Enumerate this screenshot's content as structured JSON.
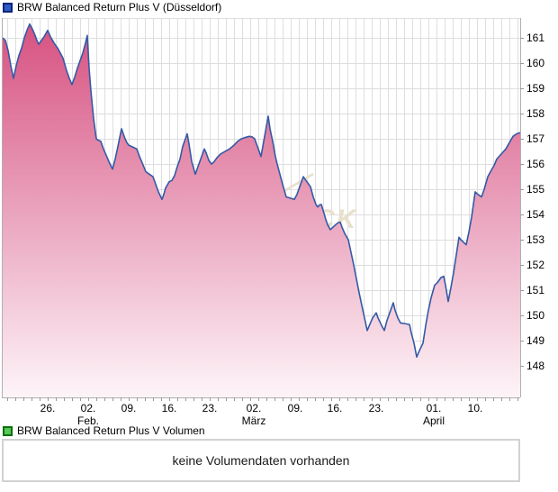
{
  "price_panel": {
    "legend": {
      "label": "BRW Balanced Return Plus V (Düsseldorf)",
      "swatch_fill": "#2e5ac8",
      "swatch_border": "#0b2477"
    }
  },
  "volume_panel": {
    "legend": {
      "label": "BRW Balanced Return Plus V Volumen",
      "swatch_fill": "#58c858",
      "swatch_border": "#0b6e0b"
    },
    "message": "keine Volumendaten vorhanden"
  },
  "watermark": {
    "text": "CK",
    "color": "#e8e0cb"
  },
  "chart_data": {
    "type": "area",
    "title": "BRW Balanced Return Plus V (Düsseldorf)",
    "xlabel": "",
    "ylabel": "",
    "ylim": [
      146.75,
      161.79
    ],
    "grid": true,
    "y_ticks": [
      148,
      149,
      150,
      151,
      152,
      153,
      154,
      155,
      156,
      157,
      158,
      159,
      160,
      161
    ],
    "x_ticks": [
      {
        "pos": 53,
        "label": "26.",
        "sublabel": ""
      },
      {
        "pos": 98,
        "label": "02.",
        "sublabel": "Feb."
      },
      {
        "pos": 143,
        "label": "09.",
        "sublabel": ""
      },
      {
        "pos": 188,
        "label": "16.",
        "sublabel": ""
      },
      {
        "pos": 233,
        "label": "23.",
        "sublabel": ""
      },
      {
        "pos": 282,
        "label": "02.",
        "sublabel": "März"
      },
      {
        "pos": 328,
        "label": "09.",
        "sublabel": ""
      },
      {
        "pos": 372,
        "label": "16.",
        "sublabel": ""
      },
      {
        "pos": 418,
        "label": "23.",
        "sublabel": ""
      },
      {
        "pos": 482,
        "label": "01.",
        "sublabel": "April"
      },
      {
        "pos": 528,
        "label": "10.",
        "sublabel": ""
      }
    ],
    "line_color": "#3459a6",
    "fill_top": "#d64f7f",
    "fill_bottom": "#fdf4f8",
    "grid_color": "#dedede",
    "axis_color": "#b0b0b0",
    "tick_color": "#999999",
    "minor_x_grid": {
      "start": 8,
      "step": 9
    },
    "points": [
      [
        3,
        161.0
      ],
      [
        6,
        160.9
      ],
      [
        9,
        160.5
      ],
      [
        12,
        159.9
      ],
      [
        15,
        159.4
      ],
      [
        18,
        159.9
      ],
      [
        21,
        160.3
      ],
      [
        24,
        160.6
      ],
      [
        27,
        161.0
      ],
      [
        30,
        161.3
      ],
      [
        33,
        161.55
      ],
      [
        36,
        161.35
      ],
      [
        39,
        161.1
      ],
      [
        41,
        160.9
      ],
      [
        43,
        160.75
      ],
      [
        46,
        160.9
      ],
      [
        49,
        161.05
      ],
      [
        53,
        161.3
      ],
      [
        56,
        161.05
      ],
      [
        60,
        160.8
      ],
      [
        64,
        160.6
      ],
      [
        67,
        160.4
      ],
      [
        70,
        160.2
      ],
      [
        74,
        159.7
      ],
      [
        77,
        159.4
      ],
      [
        80,
        159.15
      ],
      [
        83,
        159.45
      ],
      [
        86,
        159.8
      ],
      [
        89,
        160.1
      ],
      [
        92,
        160.4
      ],
      [
        95,
        160.8
      ],
      [
        97,
        161.1
      ],
      [
        99,
        159.8
      ],
      [
        101,
        158.9
      ],
      [
        104,
        157.8
      ],
      [
        107,
        157.0
      ],
      [
        109,
        156.95
      ],
      [
        112,
        156.9
      ],
      [
        115,
        156.6
      ],
      [
        118,
        156.35
      ],
      [
        121,
        156.1
      ],
      [
        123,
        155.95
      ],
      [
        125,
        155.8
      ],
      [
        128,
        156.2
      ],
      [
        131,
        156.7
      ],
      [
        133,
        157.05
      ],
      [
        135,
        157.4
      ],
      [
        137,
        157.2
      ],
      [
        139,
        157.0
      ],
      [
        141,
        156.85
      ],
      [
        143,
        156.75
      ],
      [
        146,
        156.7
      ],
      [
        149,
        156.65
      ],
      [
        152,
        156.6
      ],
      [
        155,
        156.3
      ],
      [
        158,
        156.05
      ],
      [
        162,
        155.7
      ],
      [
        166,
        155.6
      ],
      [
        170,
        155.5
      ],
      [
        173,
        155.2
      ],
      [
        176,
        154.9
      ],
      [
        180,
        154.6
      ],
      [
        182,
        154.8
      ],
      [
        184,
        155.05
      ],
      [
        188,
        155.3
      ],
      [
        191,
        155.35
      ],
      [
        194,
        155.55
      ],
      [
        197,
        155.9
      ],
      [
        200,
        156.2
      ],
      [
        203,
        156.7
      ],
      [
        206,
        157.0
      ],
      [
        208,
        157.2
      ],
      [
        210,
        156.8
      ],
      [
        213,
        156.1
      ],
      [
        217,
        155.6
      ],
      [
        220,
        155.9
      ],
      [
        223,
        156.2
      ],
      [
        227,
        156.6
      ],
      [
        229,
        156.45
      ],
      [
        232,
        156.15
      ],
      [
        235,
        156.0
      ],
      [
        238,
        156.1
      ],
      [
        241,
        156.25
      ],
      [
        245,
        156.4
      ],
      [
        250,
        156.5
      ],
      [
        255,
        156.6
      ],
      [
        260,
        156.75
      ],
      [
        264,
        156.9
      ],
      [
        268,
        157.0
      ],
      [
        272,
        157.05
      ],
      [
        277,
        157.1
      ],
      [
        280,
        157.08
      ],
      [
        283,
        157.0
      ],
      [
        286,
        156.7
      ],
      [
        290,
        156.3
      ],
      [
        293,
        156.9
      ],
      [
        296,
        157.5
      ],
      [
        298,
        157.9
      ],
      [
        300,
        157.4
      ],
      [
        303,
        156.9
      ],
      [
        306,
        156.3
      ],
      [
        308,
        156.0
      ],
      [
        311,
        155.6
      ],
      [
        314,
        155.2
      ],
      [
        318,
        154.7
      ],
      [
        322,
        154.66
      ],
      [
        327,
        154.6
      ],
      [
        330,
        154.8
      ],
      [
        334,
        155.2
      ],
      [
        337,
        155.5
      ],
      [
        340,
        155.35
      ],
      [
        343,
        155.2
      ],
      [
        345,
        155.1
      ],
      [
        348,
        154.7
      ],
      [
        351,
        154.4
      ],
      [
        353,
        154.3
      ],
      [
        355,
        154.38
      ],
      [
        357,
        154.4
      ],
      [
        360,
        154.05
      ],
      [
        362,
        153.8
      ],
      [
        364,
        153.6
      ],
      [
        367,
        153.4
      ],
      [
        370,
        153.5
      ],
      [
        373,
        153.6
      ],
      [
        376,
        153.68
      ],
      [
        378,
        153.7
      ],
      [
        380,
        153.5
      ],
      [
        383,
        153.25
      ],
      [
        387,
        153.0
      ],
      [
        390,
        152.5
      ],
      [
        393,
        152.0
      ],
      [
        396,
        151.45
      ],
      [
        399,
        150.9
      ],
      [
        402,
        150.4
      ],
      [
        405,
        149.9
      ],
      [
        408,
        149.4
      ],
      [
        411,
        149.65
      ],
      [
        414,
        149.9
      ],
      [
        418,
        150.1
      ],
      [
        420,
        149.9
      ],
      [
        424,
        149.6
      ],
      [
        427,
        149.4
      ],
      [
        430,
        149.8
      ],
      [
        433,
        150.1
      ],
      [
        437,
        150.5
      ],
      [
        439,
        150.2
      ],
      [
        442,
        149.9
      ],
      [
        445,
        149.7
      ],
      [
        449,
        149.68
      ],
      [
        455,
        149.64
      ],
      [
        457,
        149.3
      ],
      [
        460,
        148.9
      ],
      [
        463,
        148.35
      ],
      [
        466,
        148.6
      ],
      [
        470,
        148.9
      ],
      [
        473,
        149.6
      ],
      [
        476,
        150.2
      ],
      [
        479,
        150.7
      ],
      [
        483,
        151.2
      ],
      [
        486,
        151.3
      ],
      [
        490,
        151.5
      ],
      [
        493,
        151.55
      ],
      [
        495,
        151.2
      ],
      [
        498,
        150.55
      ],
      [
        501,
        151.1
      ],
      [
        504,
        151.7
      ],
      [
        507,
        152.4
      ],
      [
        510,
        153.1
      ],
      [
        512,
        153.0
      ],
      [
        515,
        152.9
      ],
      [
        518,
        152.8
      ],
      [
        521,
        153.3
      ],
      [
        524,
        153.9
      ],
      [
        528,
        154.9
      ],
      [
        531,
        154.8
      ],
      [
        535,
        154.7
      ],
      [
        538,
        155.0
      ],
      [
        542,
        155.5
      ],
      [
        545,
        155.7
      ],
      [
        549,
        155.95
      ],
      [
        552,
        156.2
      ],
      [
        557,
        156.4
      ],
      [
        562,
        156.6
      ],
      [
        566,
        156.85
      ],
      [
        570,
        157.1
      ],
      [
        574,
        157.2
      ],
      [
        578,
        157.25
      ]
    ]
  }
}
